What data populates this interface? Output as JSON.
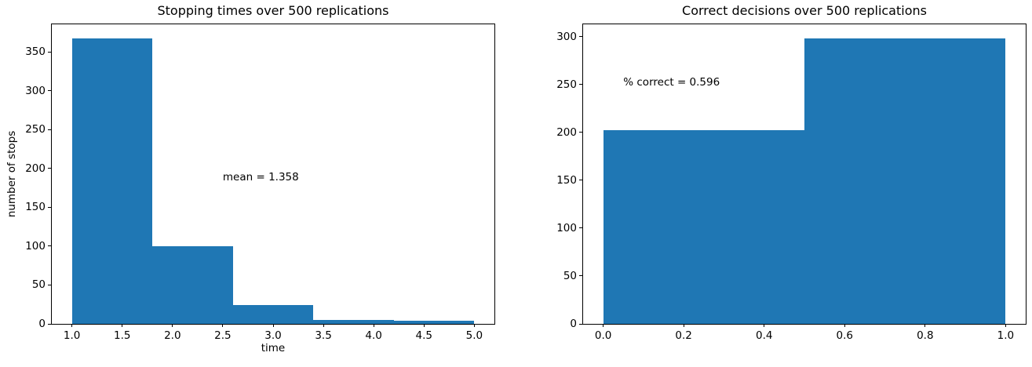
{
  "figure": {
    "background": "#ffffff",
    "text_color": "#000000"
  },
  "chart_data": [
    {
      "id": "stopping-times",
      "type": "bar",
      "subtype": "histogram",
      "title": "Stopping times over 500 replications",
      "xlabel": "time",
      "ylabel": "number of stops",
      "bar_color": "#1f77b4",
      "bin_edges": [
        1.0,
        1.8,
        2.6,
        3.4,
        4.2,
        5.0
      ],
      "counts": [
        367,
        100,
        24,
        5,
        4
      ],
      "total_replications": 500,
      "xlim": [
        0.8,
        5.2
      ],
      "ylim": [
        0,
        385.35
      ],
      "xticks": [
        1.0,
        1.5,
        2.0,
        2.5,
        3.0,
        3.5,
        4.0,
        4.5,
        5.0
      ],
      "xtick_labels": [
        "1.0",
        "1.5",
        "2.0",
        "2.5",
        "3.0",
        "3.5",
        "4.0",
        "4.5",
        "5.0"
      ],
      "yticks": [
        0,
        50,
        100,
        150,
        200,
        250,
        300,
        350
      ],
      "ytick_labels": [
        "0",
        "50",
        "100",
        "150",
        "200",
        "250",
        "300",
        "350"
      ],
      "grid": false,
      "legend": null,
      "annotation": {
        "text": "mean = 1.358",
        "x": 2.5,
        "y": 189
      }
    },
    {
      "id": "correct-decisions",
      "type": "bar",
      "subtype": "histogram",
      "title": "Correct decisions over 500 replications",
      "xlabel": "",
      "ylabel": "",
      "bar_color": "#1f77b4",
      "bin_edges": [
        0.0,
        0.5,
        1.0
      ],
      "counts": [
        202,
        298
      ],
      "total_replications": 500,
      "xlim": [
        -0.05,
        1.05
      ],
      "ylim": [
        0,
        312.9
      ],
      "xticks": [
        0.0,
        0.2,
        0.4,
        0.6,
        0.8,
        1.0
      ],
      "xtick_labels": [
        "0.0",
        "0.2",
        "0.4",
        "0.6",
        "0.8",
        "1.0"
      ],
      "yticks": [
        0,
        50,
        100,
        150,
        200,
        250,
        300
      ],
      "ytick_labels": [
        "0",
        "50",
        "100",
        "150",
        "200",
        "250",
        "300"
      ],
      "grid": false,
      "legend": null,
      "annotation": {
        "text": "% correct = 0.596",
        "x": 0.05,
        "y": 252
      }
    }
  ]
}
